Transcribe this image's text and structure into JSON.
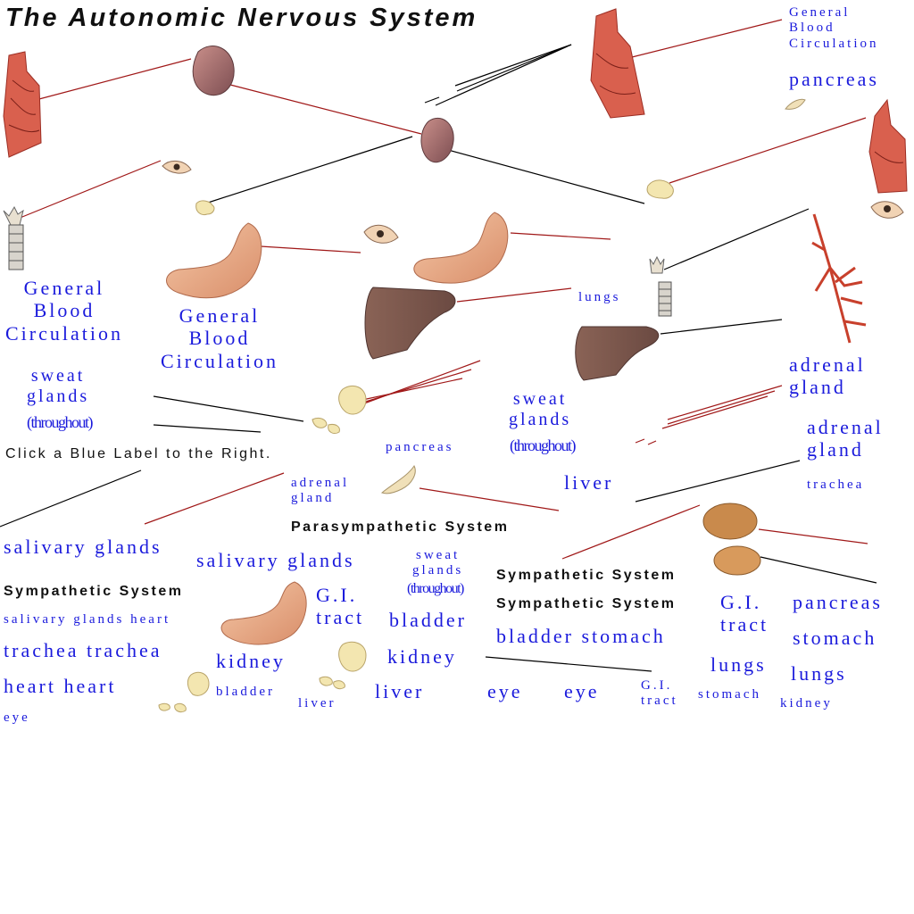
{
  "title": "The Autonomic Nervous System",
  "instruction": "Click a Blue Label to the Right.",
  "headers": {
    "parasympathetic": "Parasympathetic System",
    "sympathetic_a": "Sympathetic System",
    "sympathetic_b": "Sympathetic System",
    "sympathetic_c": "Sympathetic System"
  },
  "labels": {
    "gbc_top_right": "General\nBlood\nCirculation",
    "pancreas_top_right": "pancreas",
    "gbc_left": "General\nBlood\nCirculation",
    "gbc_mid": "General\nBlood\nCirculation",
    "sweat_left": "sweat\nglands",
    "throughout_left": "(throughout)",
    "lungs_mid": "lungs",
    "sweat_mid": "sweat\nglands",
    "throughout_mid": "(throughout)",
    "adrenal_right_1": "adrenal\ngland",
    "adrenal_right_2": "adrenal\ngland",
    "trachea_right": "trachea",
    "pancreas_mid": "pancreas",
    "adrenal_small": "adrenal\ngland",
    "liver_mid": "liver",
    "salivary_1": "salivary glands",
    "salivary_2": "salivary glands",
    "sweat_small": "sweat\nglands",
    "throughout_small": "(throughout)",
    "salivary_heart_small": "salivary glands heart",
    "trachea_trachea": "trachea trachea",
    "heart_heart": "heart heart",
    "eye_small": "eye",
    "gi_tract_1": "G.I.\ntract",
    "bladder_1": "bladder",
    "kidney_1": "kidney",
    "kidney_2": "kidney",
    "bladder_small": "bladder",
    "liver_small": "liver",
    "liver_2": "liver",
    "eye_1": "eye",
    "eye_2": "eye",
    "bladder_stomach": "bladder stomach",
    "gi_tract_2": "G.I.\ntract",
    "pancreas_right": "pancreas",
    "stomach_right": "stomach",
    "lungs_1": "lungs",
    "lungs_2": "lungs",
    "gi_tract_small": "G.I.\ntract",
    "stomach_small": "stomach",
    "kidney_small": "kidney"
  },
  "colors": {
    "label_blue": "#1a1adc",
    "red_line": "#a01818",
    "black_line": "#000000"
  }
}
